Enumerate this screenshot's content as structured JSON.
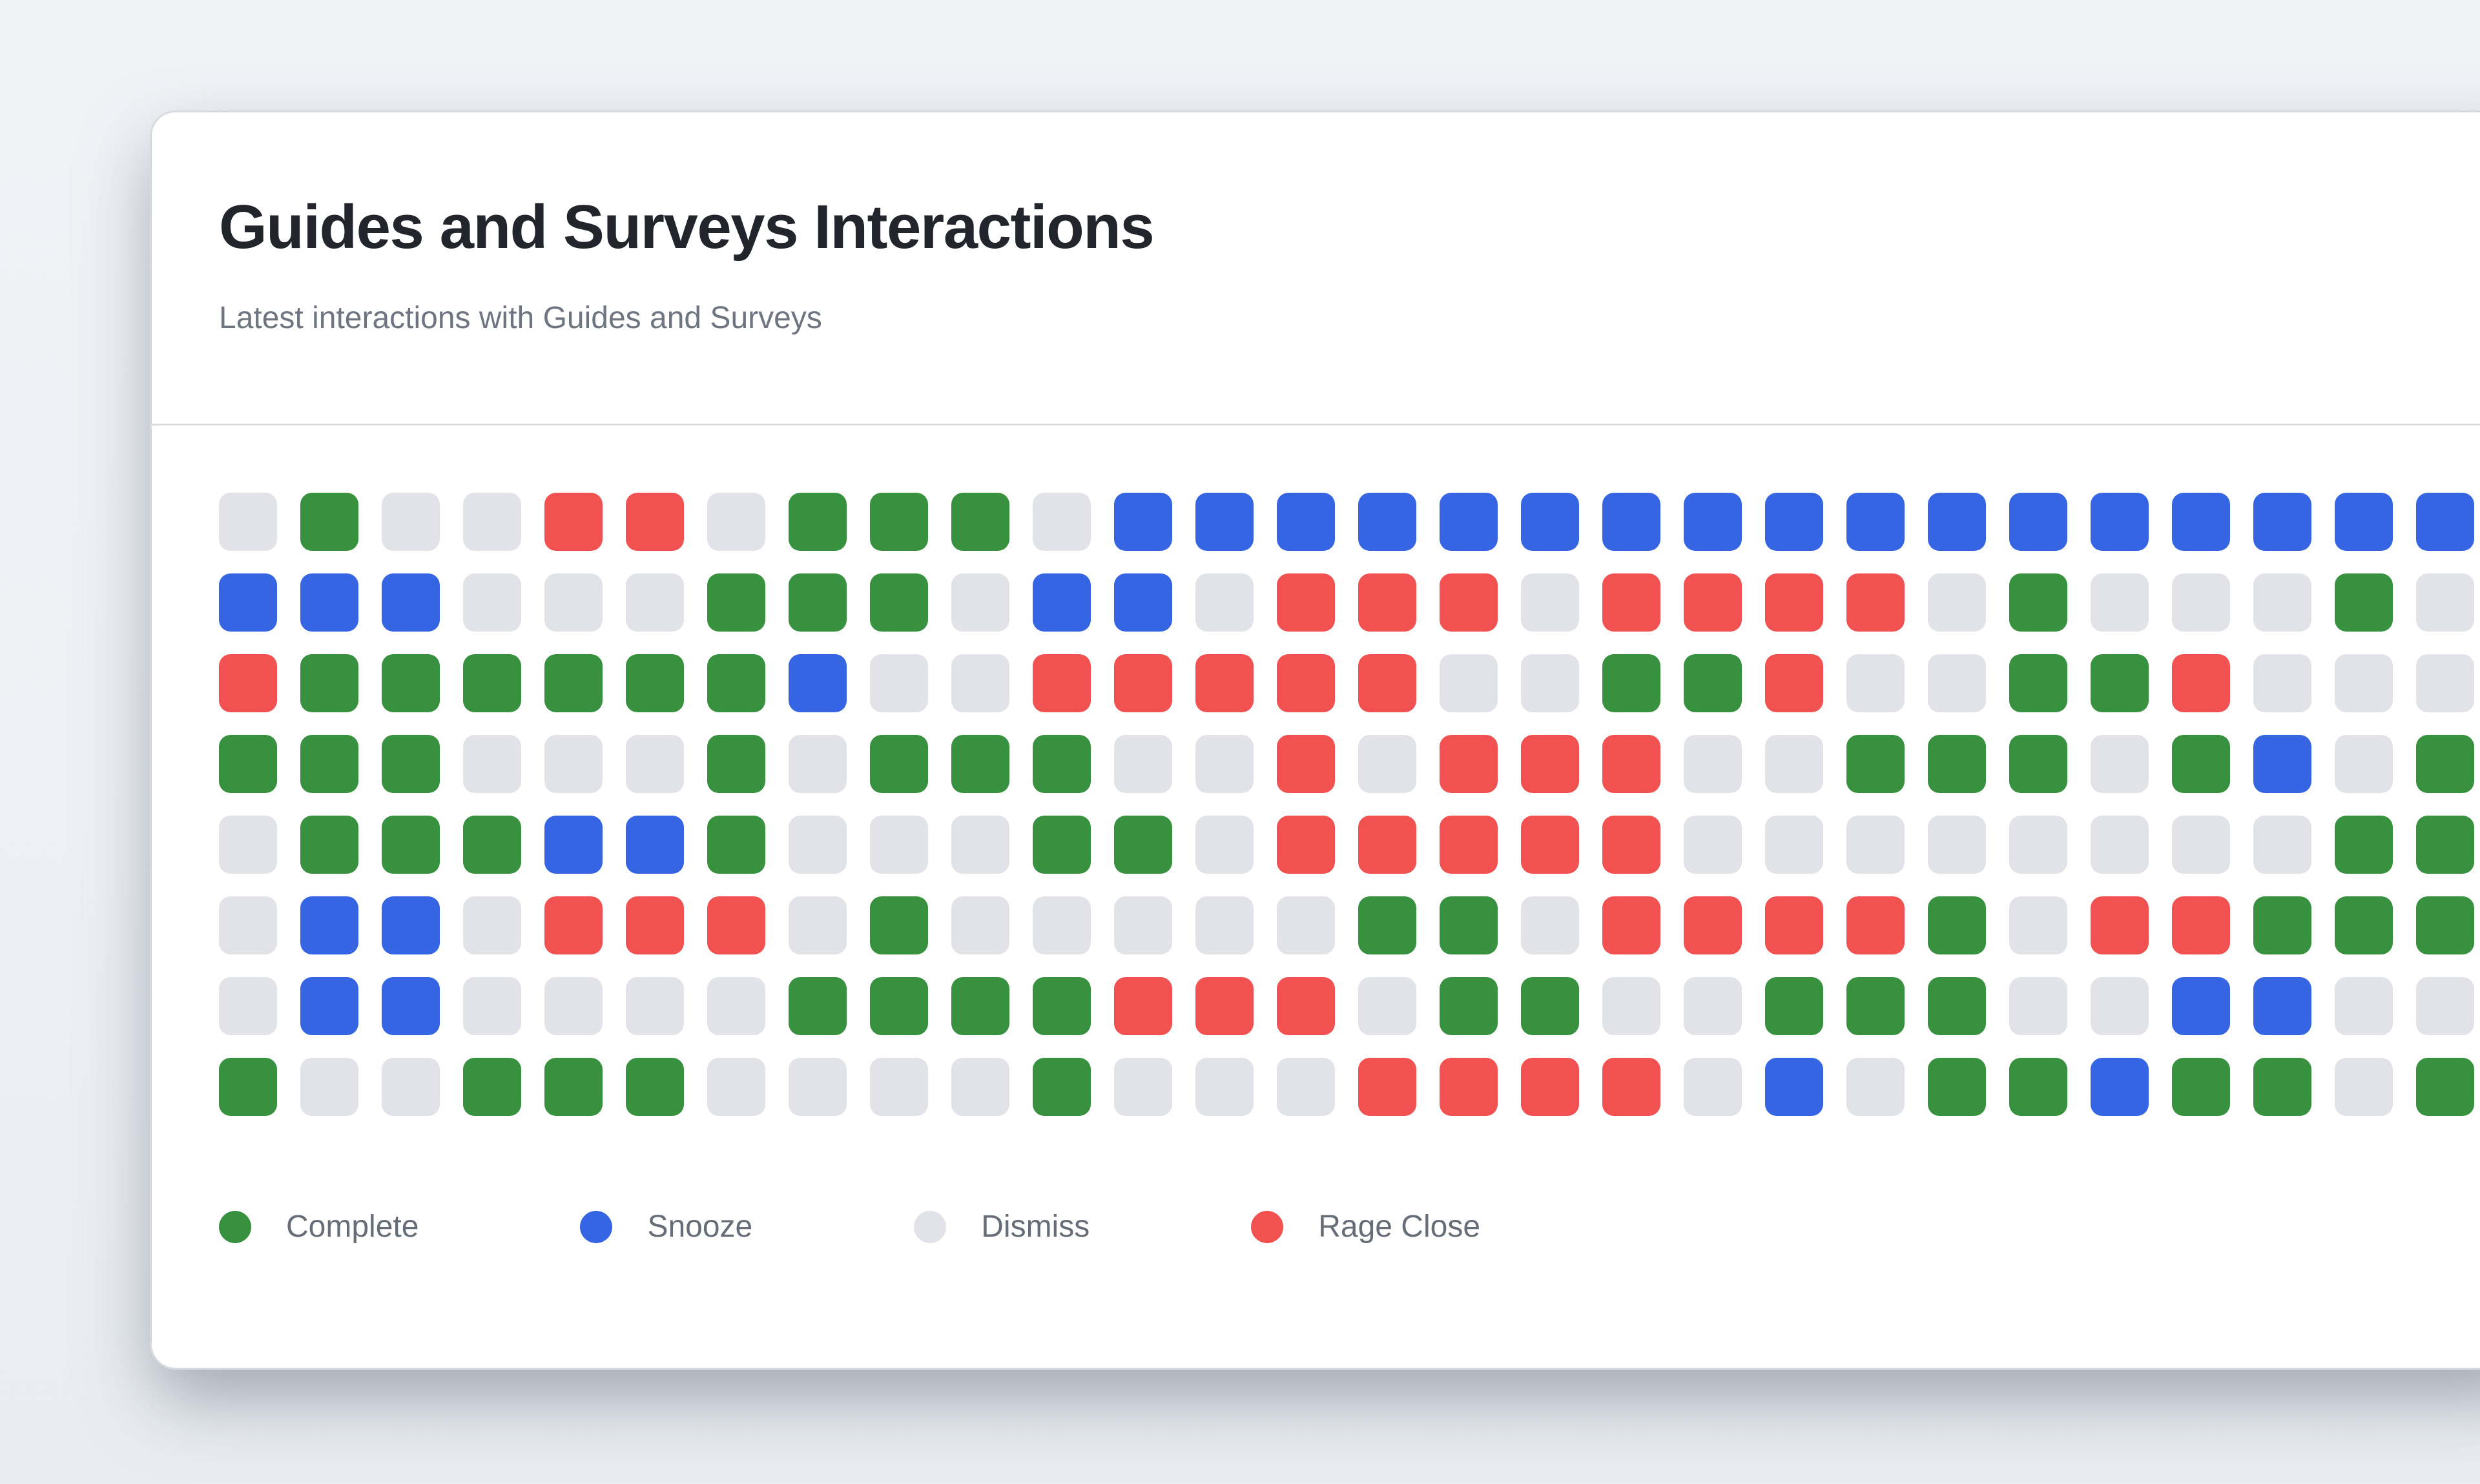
{
  "chart_data": {
    "type": "heatmap",
    "title": "Guides and Surveys Interactions",
    "subtitle": "Latest interactions with Guides and Surveys",
    "columns": 28,
    "rows": 8,
    "categories": [
      "Complete",
      "Snooze",
      "Dismiss",
      "Rage Close"
    ],
    "encoding": {
      "C": "Complete",
      "S": "Snooze",
      "D": "Dismiss",
      "R": "Rage Close"
    },
    "colors": {
      "Complete": "#37913F",
      "Snooze": "#3565E3",
      "Dismiss": "#E1E3E8",
      "Rage Close": "#F25151"
    },
    "grid_rows": [
      "DCDDRRDCCCDSSSSSSSSSSSSSSSSS",
      "SSSDDDCCCDSSDRRRDRRRRDCDDDCD",
      "RCCCCCCSDDRRRRRDDCCRDDCCRDDD",
      "CCCDDDCDCCCDDRDRRRDDCCCDCSDC",
      "DCCCSSCDDDCCDRRRRRDDDDDDDDCC",
      "DSSDRRRDCDDDDDCCDRRRRCDRRCCC",
      "DSSDDDDCCCCRRRDCCDDCCCDDSSDD",
      "CDDCCCDDDDCDDDRRRRDSDCCSCCDC"
    ],
    "legend_position": "bottom"
  },
  "page": {
    "background": "#EDF0F4"
  },
  "card": {
    "background": "#FFFFFF",
    "border_color": "#D7DADE",
    "title_color": "#23252D",
    "subtitle_color": "#6E7480"
  }
}
